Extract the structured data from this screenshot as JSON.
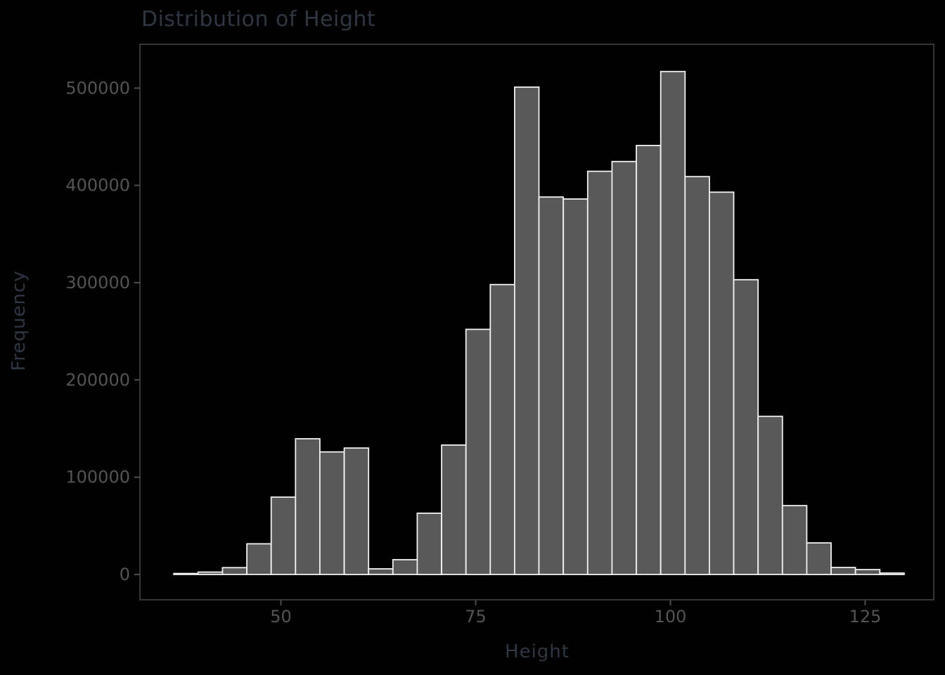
{
  "page": {
    "background": "#000000"
  },
  "chart_data": {
    "type": "bar",
    "subtype": "histogram",
    "title": "Distribution of Height",
    "xlabel": "Height",
    "ylabel": "Frequency",
    "x_ticks": [
      50,
      75,
      100,
      125
    ],
    "y_ticks": [
      0,
      100000,
      200000,
      300000,
      400000,
      500000
    ],
    "x_range": [
      31.9,
      133.8
    ],
    "y_range": [
      -26000,
      545000
    ],
    "grid": "off",
    "legend": "none",
    "bins": {
      "edges": [
        36.25,
        39.375,
        42.5,
        45.625,
        48.75,
        51.875,
        55.0,
        58.125,
        61.25,
        64.375,
        67.5,
        70.625,
        73.75,
        76.875,
        80.0,
        83.125,
        86.25,
        89.375,
        92.5,
        95.625,
        98.75,
        101.875,
        105.0,
        108.125,
        111.25,
        114.375,
        117.5,
        120.625,
        123.75,
        126.875,
        130.0
      ],
      "counts": [
        1000,
        2500,
        7000,
        31500,
        79500,
        139500,
        126000,
        130000,
        5800,
        15200,
        63000,
        133000,
        252000,
        298000,
        501000,
        388000,
        386000,
        414500,
        424500,
        441000,
        517000,
        409000,
        393000,
        303000,
        162500,
        70800,
        32500,
        7200,
        5000,
        1500
      ]
    },
    "colors": {
      "background": "#000000",
      "bar_fill": "#595959",
      "bar_edge": "#f0f0f0",
      "panel_border": "#363636",
      "tick_mark": "#4d4d4d",
      "tick_label": "#545454",
      "title_text": "#2e3744",
      "axis_title_text": "#2e3744"
    }
  }
}
